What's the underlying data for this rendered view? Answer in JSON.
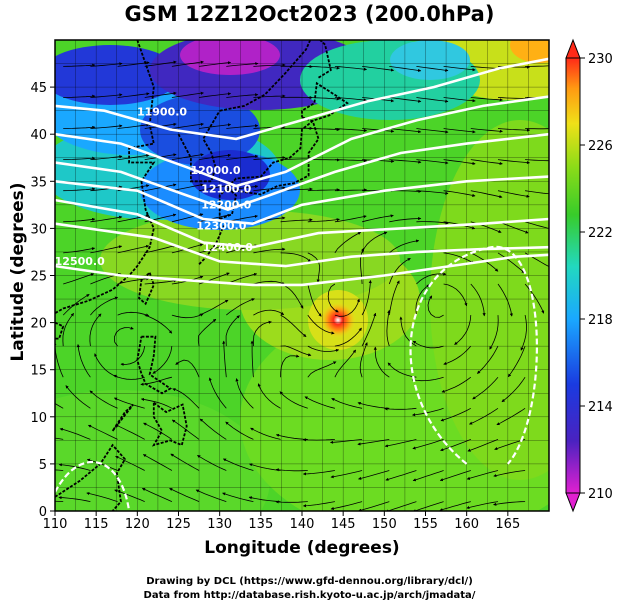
{
  "title": "GSM 12Z12Oct2023 (200.0hPa)",
  "xlabel": "Longitude (degrees)",
  "ylabel": "Latitude  (degrees)",
  "credits": {
    "line1": "Drawing by DCL (https://www.gfd-dennou.org/library/dcl/)",
    "line2": "Data from http://database.rish.kyoto-u.ac.jp/arch/jmadata/"
  },
  "map": {
    "lon_range": [
      110,
      170
    ],
    "lat_range": [
      0,
      50
    ],
    "x_ticks": [
      110,
      115,
      120,
      125,
      130,
      135,
      140,
      145,
      150,
      155,
      160,
      165
    ],
    "y_ticks": [
      0,
      5,
      10,
      15,
      20,
      25,
      30,
      35,
      40,
      45
    ],
    "grid": true,
    "typhoon_center": {
      "lon": 145,
      "lat": 22.5
    }
  },
  "contours": [
    {
      "label": "11900.0"
    },
    {
      "label": "12000.0"
    },
    {
      "label": "12100.0"
    },
    {
      "label": "12200.0"
    },
    {
      "label": "12300.0"
    },
    {
      "label": "12400.0"
    },
    {
      "label": "12500.0"
    }
  ],
  "colorbar": {
    "min": 210,
    "max": 230,
    "tick_labels": [
      "230",
      "226",
      "222",
      "218",
      "214",
      "210"
    ],
    "colors": [
      "#e0e",
      "#2a28c8",
      "#1a8fff",
      "#22d8c8",
      "#3ccc28",
      "#7ed81a",
      "#f2e21a",
      "#ff9a12",
      "#ff3418"
    ]
  }
}
